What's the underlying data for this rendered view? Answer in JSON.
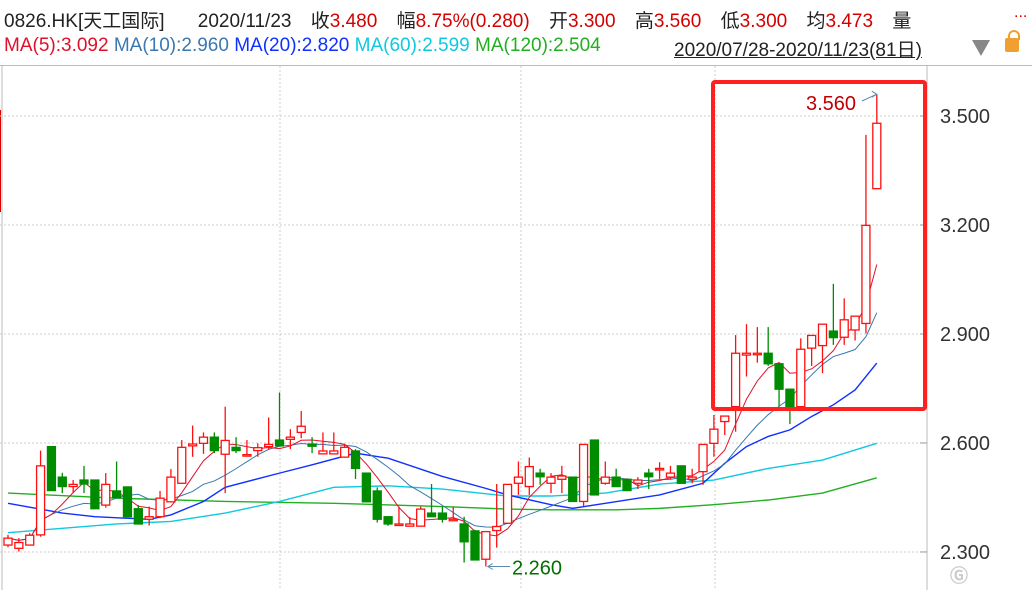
{
  "header": {
    "symbol": "0826.HK[天工国际]",
    "date": "2020/11/23",
    "close_label": "收",
    "close": "3.480",
    "change_label": "幅",
    "change": "8.75%(0.280)",
    "open_label": "开",
    "open": "3.300",
    "high_label": "高",
    "high": "3.560",
    "low_label": "低",
    "low": "3.300",
    "avg_label": "均",
    "avg": "3.473",
    "volume_label": "量",
    "more": "..."
  },
  "ma_legend": [
    {
      "text": "MA(5):3.092",
      "color": "#e0102a"
    },
    {
      "text": "MA(10):2.960",
      "color": "#3a78b0"
    },
    {
      "text": "MA(20):2.820",
      "color": "#1030ff"
    },
    {
      "text": "MA(60):2.599",
      "color": "#10c8e0"
    },
    {
      "text": "MA(120):2.504",
      "color": "#20b020"
    }
  ],
  "range": "2020/07/28-2020/11/23(81日)",
  "icons": {
    "dropdown": "triangle-down-icon",
    "lock": "lock-icon"
  },
  "watermark": "格隆汇",
  "colors": {
    "up": "#ff1010",
    "down": "#008c00",
    "highlight_box": "#ff2020"
  },
  "chart_data": {
    "type": "candlestick",
    "title": "",
    "y_ticks": [
      "3.500",
      "3.200",
      "2.900",
      "2.600",
      "2.300"
    ],
    "ylim": [
      2.22,
      3.61
    ],
    "grid": true,
    "annotations": {
      "high_label": "3.560",
      "high_value": 3.56,
      "high_index": 80,
      "low_label": "2.260",
      "low_value": 2.26,
      "low_index": 44,
      "highlight_box_from_index": 67,
      "highlight_box_to_index": 80
    },
    "ohlc": [
      [
        2.319,
        2.347,
        2.313,
        2.338
      ],
      [
        2.31,
        2.338,
        2.301,
        2.326
      ],
      [
        2.319,
        2.352,
        2.318,
        2.346
      ],
      [
        2.347,
        2.579,
        2.342,
        2.537
      ],
      [
        2.59,
        2.59,
        2.469,
        2.469
      ],
      [
        2.506,
        2.518,
        2.462,
        2.48
      ],
      [
        2.48,
        2.498,
        2.462,
        2.486
      ],
      [
        2.498,
        2.537,
        2.462,
        2.487
      ],
      [
        2.498,
        2.498,
        2.419,
        2.419
      ],
      [
        2.429,
        2.517,
        2.422,
        2.486
      ],
      [
        2.468,
        2.549,
        2.448,
        2.45
      ],
      [
        2.479,
        2.479,
        2.397,
        2.397
      ],
      [
        2.419,
        2.429,
        2.377,
        2.377
      ],
      [
        2.39,
        2.425,
        2.373,
        2.397
      ],
      [
        2.397,
        2.468,
        2.393,
        2.448
      ],
      [
        2.438,
        2.528,
        2.438,
        2.506
      ],
      [
        2.489,
        2.608,
        2.489,
        2.588
      ],
      [
        2.592,
        2.648,
        2.562,
        2.597
      ],
      [
        2.599,
        2.629,
        2.57,
        2.616
      ],
      [
        2.616,
        2.629,
        2.572,
        2.579
      ],
      [
        2.569,
        2.7,
        2.462,
        2.607
      ],
      [
        2.588,
        2.616,
        2.572,
        2.579
      ],
      [
        2.565,
        2.608,
        2.565,
        2.568
      ],
      [
        2.579,
        2.599,
        2.562,
        2.587
      ],
      [
        2.59,
        2.67,
        2.583,
        2.596
      ],
      [
        2.608,
        2.739,
        2.592,
        2.592
      ],
      [
        2.61,
        2.638,
        2.583,
        2.616
      ],
      [
        2.629,
        2.688,
        2.613,
        2.646
      ],
      [
        2.597,
        2.616,
        2.572,
        2.591
      ],
      [
        2.57,
        2.629,
        2.57,
        2.578
      ],
      [
        2.57,
        2.629,
        2.57,
        2.578
      ],
      [
        2.561,
        2.595,
        2.561,
        2.588
      ],
      [
        2.578,
        2.583,
        2.501,
        2.53
      ],
      [
        2.517,
        2.517,
        2.438,
        2.438
      ],
      [
        2.468,
        2.478,
        2.381,
        2.39
      ],
      [
        2.397,
        2.397,
        2.372,
        2.377
      ],
      [
        2.375,
        2.425,
        2.375,
        2.377
      ],
      [
        2.371,
        2.396,
        2.371,
        2.377
      ],
      [
        2.371,
        2.425,
        2.371,
        2.418
      ],
      [
        2.407,
        2.487,
        2.397,
        2.397
      ],
      [
        2.407,
        2.425,
        2.381,
        2.39
      ],
      [
        2.388,
        2.425,
        2.388,
        2.39
      ],
      [
        2.377,
        2.397,
        2.271,
        2.328
      ],
      [
        2.358,
        2.361,
        2.278,
        2.278
      ],
      [
        2.28,
        2.356,
        2.26,
        2.356
      ],
      [
        2.359,
        2.487,
        2.312,
        2.37
      ],
      [
        2.379,
        2.486,
        2.377,
        2.486
      ],
      [
        2.489,
        2.549,
        2.457,
        2.506
      ],
      [
        2.48,
        2.56,
        2.457,
        2.535
      ],
      [
        2.517,
        2.529,
        2.485,
        2.507
      ],
      [
        2.489,
        2.517,
        2.462,
        2.506
      ],
      [
        2.5,
        2.537,
        2.462,
        2.509
      ],
      [
        2.506,
        2.506,
        2.439,
        2.439
      ],
      [
        2.439,
        2.596,
        2.425,
        2.596
      ],
      [
        2.608,
        2.608,
        2.457,
        2.457
      ],
      [
        2.489,
        2.549,
        2.485,
        2.506
      ],
      [
        2.506,
        2.529,
        2.48,
        2.48
      ],
      [
        2.5,
        2.5,
        2.469,
        2.469
      ],
      [
        2.489,
        2.506,
        2.473,
        2.498
      ],
      [
        2.517,
        2.529,
        2.473,
        2.507
      ],
      [
        2.526,
        2.547,
        2.501,
        2.53
      ],
      [
        2.506,
        2.537,
        2.501,
        2.517
      ],
      [
        2.537,
        2.537,
        2.489,
        2.489
      ],
      [
        2.5,
        2.529,
        2.489,
        2.506
      ],
      [
        2.521,
        2.596,
        2.485,
        2.596
      ],
      [
        2.599,
        2.677,
        2.562,
        2.638
      ],
      [
        2.659,
        2.674,
        2.622,
        2.674
      ],
      [
        2.7,
        2.897,
        2.631,
        2.847
      ],
      [
        2.842,
        2.927,
        2.783,
        2.847
      ],
      [
        2.846,
        2.919,
        2.821,
        2.847
      ],
      [
        2.847,
        2.919,
        2.812,
        2.818
      ],
      [
        2.818,
        2.818,
        2.7,
        2.748
      ],
      [
        2.748,
        2.748,
        2.652,
        2.7
      ],
      [
        2.7,
        2.888,
        2.7,
        2.858
      ],
      [
        2.861,
        2.896,
        2.812,
        2.896
      ],
      [
        2.868,
        2.927,
        2.792,
        2.927
      ],
      [
        2.908,
        3.038,
        2.87,
        2.89
      ],
      [
        2.891,
        2.998,
        2.87,
        2.939
      ],
      [
        2.911,
        2.949,
        2.882,
        2.949
      ],
      [
        2.929,
        3.448,
        2.902,
        3.199
      ],
      [
        3.3,
        3.56,
        3.3,
        3.48
      ]
    ],
    "ohlc_order": [
      "open",
      "high",
      "low",
      "close"
    ],
    "ma_series": [
      {
        "name": "MA(20)",
        "color": "#1030ff",
        "points": [
          [
            0,
            2.434
          ],
          [
            5,
            2.407
          ],
          [
            8,
            2.397
          ],
          [
            13,
            2.39
          ],
          [
            15,
            2.402
          ],
          [
            18,
            2.439
          ],
          [
            20,
            2.478
          ],
          [
            25,
            2.517
          ],
          [
            28,
            2.54
          ],
          [
            32,
            2.572
          ],
          [
            35,
            2.558
          ],
          [
            40,
            2.508
          ],
          [
            44,
            2.475
          ],
          [
            46,
            2.457
          ],
          [
            50,
            2.43
          ],
          [
            52,
            2.42
          ],
          [
            55,
            2.434
          ],
          [
            60,
            2.457
          ],
          [
            64,
            2.489
          ],
          [
            66,
            2.544
          ],
          [
            68,
            2.59
          ],
          [
            70,
            2.618
          ],
          [
            72,
            2.636
          ],
          [
            74,
            2.673
          ],
          [
            76,
            2.705
          ],
          [
            78,
            2.746
          ],
          [
            80,
            2.82
          ]
        ]
      },
      {
        "name": "MA(60)",
        "color": "#10c8e0",
        "points": [
          [
            0,
            2.353
          ],
          [
            10,
            2.377
          ],
          [
            15,
            2.384
          ],
          [
            20,
            2.407
          ],
          [
            25,
            2.439
          ],
          [
            30,
            2.478
          ],
          [
            35,
            2.482
          ],
          [
            40,
            2.473
          ],
          [
            46,
            2.454
          ],
          [
            50,
            2.454
          ],
          [
            55,
            2.462
          ],
          [
            60,
            2.487
          ],
          [
            65,
            2.498
          ],
          [
            70,
            2.53
          ],
          [
            75,
            2.553
          ],
          [
            80,
            2.599
          ]
        ]
      },
      {
        "name": "MA(120)",
        "color": "#20b020",
        "points": [
          [
            0,
            2.462
          ],
          [
            10,
            2.448
          ],
          [
            20,
            2.439
          ],
          [
            30,
            2.434
          ],
          [
            40,
            2.425
          ],
          [
            46,
            2.418
          ],
          [
            50,
            2.416
          ],
          [
            56,
            2.416
          ],
          [
            60,
            2.42
          ],
          [
            65,
            2.43
          ],
          [
            70,
            2.443
          ],
          [
            75,
            2.462
          ],
          [
            80,
            2.504
          ]
        ]
      }
    ],
    "computed_ma": [
      {
        "name": "MA(5)",
        "period": 5,
        "color": "#e0102a"
      },
      {
        "name": "MA(10)",
        "period": 10,
        "color": "#3a78b0"
      }
    ]
  }
}
